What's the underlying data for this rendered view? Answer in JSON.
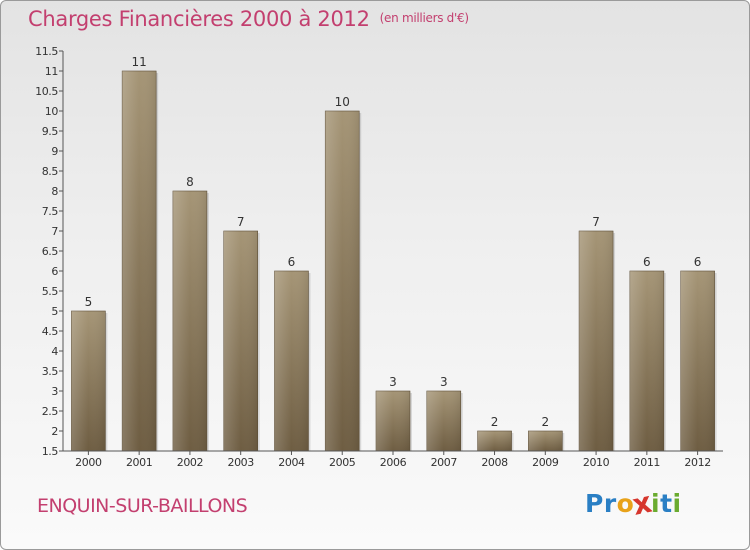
{
  "chart_data": {
    "type": "bar",
    "title": "Charges Financières 2000 à 2012",
    "subtitle": "(en milliers d'€)",
    "categories": [
      "2000",
      "2001",
      "2002",
      "2003",
      "2004",
      "2005",
      "2006",
      "2007",
      "2008",
      "2009",
      "2010",
      "2011",
      "2012"
    ],
    "values": [
      5,
      11,
      8,
      7,
      6,
      10,
      3,
      3,
      2,
      2,
      7,
      6,
      6
    ],
    "yticks": [
      "1.5",
      "2",
      "2.5",
      "3",
      "3.5",
      "4",
      "4.5",
      "5",
      "5.5",
      "6",
      "6.5",
      "7",
      "7.5",
      "8",
      "8.5",
      "9",
      "9.5",
      "10",
      "10.5",
      "11",
      "11.5"
    ],
    "ylim": [
      1.5,
      11.5
    ],
    "grid": false,
    "bar_color": "#8c7a5e"
  },
  "footer": {
    "commune": "ENQUIN-SUR-BAILLONS"
  },
  "logo": {
    "letters": [
      {
        "ch": "P",
        "color": "#2a7fc4"
      },
      {
        "ch": "r",
        "color": "#2a7fc4"
      },
      {
        "ch": "o",
        "color": "#e8a21a"
      },
      {
        "ch": "x",
        "color": "#d6362d"
      },
      {
        "ch": "i",
        "color": "#6aab2f"
      },
      {
        "ch": "t",
        "color": "#2a7fc4"
      },
      {
        "ch": "i",
        "color": "#6aab2f"
      }
    ]
  }
}
